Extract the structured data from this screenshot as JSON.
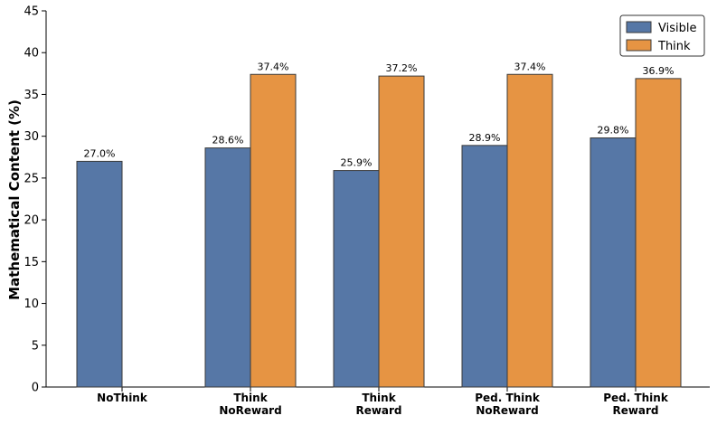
{
  "chart_data": {
    "type": "bar",
    "categories": [
      [
        "NoThink"
      ],
      [
        "Think",
        "NoReward"
      ],
      [
        "Think",
        "Reward"
      ],
      [
        "Ped. Think",
        "NoReward"
      ],
      [
        "Ped. Think",
        "Reward"
      ]
    ],
    "series": [
      {
        "name": "Visible",
        "color": "#5677a6",
        "values": [
          27.0,
          28.6,
          25.9,
          28.9,
          29.8
        ],
        "labels": [
          "27.0%",
          "28.6%",
          "25.9%",
          "28.9%",
          "29.8%"
        ]
      },
      {
        "name": "Think",
        "color": "#e69443",
        "values": [
          null,
          37.4,
          37.2,
          37.4,
          36.9
        ],
        "labels": [
          null,
          "37.4%",
          "37.2%",
          "37.4%",
          "36.9%"
        ]
      }
    ],
    "title": "",
    "xlabel": "",
    "ylabel": "Mathematical Content (%)",
    "ylim": [
      0,
      45
    ],
    "yticks": [
      0,
      5,
      10,
      15,
      20,
      25,
      30,
      35,
      40,
      45
    ],
    "grid": false,
    "legend_position": "top-right"
  }
}
